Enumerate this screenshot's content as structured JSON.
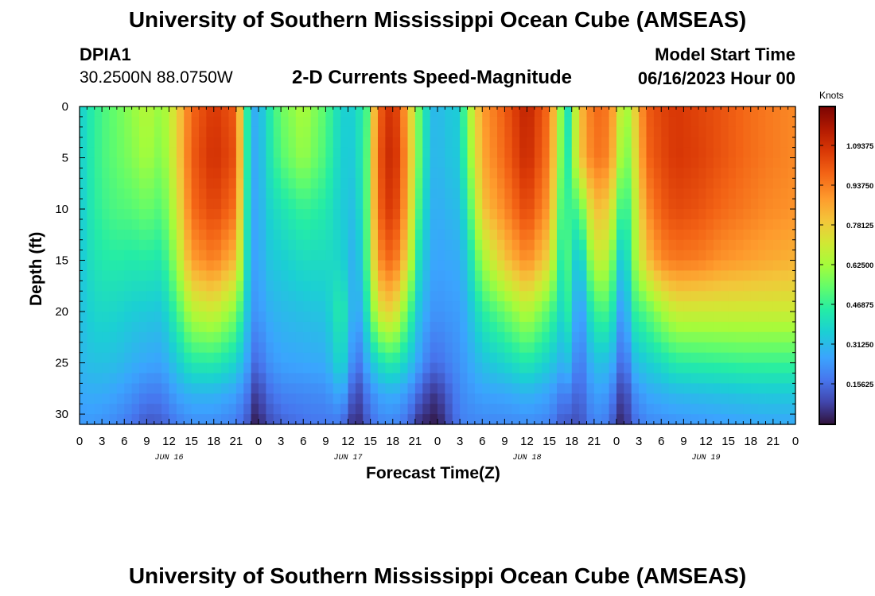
{
  "header": {
    "title": "University of Southern Mississippi Ocean Cube (AMSEAS)",
    "station_id": "DPIA1",
    "station_coords": "30.2500N  88.0750W",
    "plot_title": "2-D Currents Speed-Magnitude",
    "model_start_label": "Model Start Time",
    "model_start_value": "06/16/2023 Hour 00"
  },
  "footer": {
    "title": "University of Southern Mississippi Ocean Cube (AMSEAS)"
  },
  "chart_data": {
    "type": "heatmap",
    "title": "2-D Currents Speed-Magnitude",
    "xlabel": "Forecast Time(Z)",
    "ylabel": "Depth (ft)",
    "x_range_hours": [
      0,
      96
    ],
    "ylim": [
      0,
      31
    ],
    "x_tick_labels": [
      "0",
      "3",
      "6",
      "9",
      "12",
      "15",
      "18",
      "21",
      "0",
      "3",
      "6",
      "9",
      "12",
      "15",
      "18",
      "21",
      "0",
      "3",
      "6",
      "9",
      "12",
      "15",
      "18",
      "21",
      "0",
      "3",
      "6",
      "9",
      "12",
      "15",
      "18",
      "21",
      "0"
    ],
    "y_ticks": [
      0,
      5,
      10,
      15,
      20,
      25,
      30
    ],
    "date_labels": [
      {
        "label": "JUN 16",
        "hour": 12
      },
      {
        "label": "JUN 17",
        "hour": 36
      },
      {
        "label": "JUN 18",
        "hour": 60
      },
      {
        "label": "JUN 19",
        "hour": 84
      }
    ],
    "colorbar": {
      "unit": "Knots",
      "min": 0.0,
      "max": 1.25,
      "labels": [
        "1.09375",
        "0.93750",
        "0.78125",
        "0.62500",
        "0.46875",
        "0.31250",
        "0.15625"
      ]
    },
    "columns": [
      {
        "hour": 0,
        "v": [
          0.35,
          0.35,
          0.34,
          0.33,
          0.32,
          0.3,
          0.27,
          0.24
        ]
      },
      {
        "hour": 1,
        "v": [
          0.42,
          0.42,
          0.41,
          0.39,
          0.36,
          0.32,
          0.28,
          0.24
        ]
      },
      {
        "hour": 2,
        "v": [
          0.46,
          0.46,
          0.45,
          0.42,
          0.38,
          0.33,
          0.28,
          0.24
        ]
      },
      {
        "hour": 3,
        "v": [
          0.5,
          0.5,
          0.48,
          0.44,
          0.39,
          0.33,
          0.28,
          0.23
        ]
      },
      {
        "hour": 5,
        "v": [
          0.55,
          0.54,
          0.51,
          0.45,
          0.38,
          0.32,
          0.26,
          0.21
        ]
      },
      {
        "hour": 7,
        "v": [
          0.6,
          0.58,
          0.52,
          0.44,
          0.36,
          0.29,
          0.23,
          0.17
        ]
      },
      {
        "hour": 9,
        "v": [
          0.66,
          0.63,
          0.55,
          0.45,
          0.35,
          0.27,
          0.19,
          0.12
        ]
      },
      {
        "hour": 11,
        "v": [
          0.6,
          0.57,
          0.51,
          0.43,
          0.34,
          0.26,
          0.19,
          0.13
        ]
      },
      {
        "hour": 13,
        "v": [
          0.76,
          0.75,
          0.7,
          0.62,
          0.48,
          0.35,
          0.26,
          0.19
        ]
      },
      {
        "hour": 15,
        "v": [
          0.98,
          1.0,
          0.97,
          0.88,
          0.66,
          0.44,
          0.3,
          0.22
        ]
      },
      {
        "hour": 18,
        "v": [
          1.08,
          1.1,
          1.05,
          0.94,
          0.7,
          0.45,
          0.3,
          0.22
        ]
      },
      {
        "hour": 21,
        "v": [
          1.0,
          1.02,
          0.96,
          0.82,
          0.58,
          0.38,
          0.26,
          0.19
        ]
      },
      {
        "hour": 22.5,
        "v": [
          0.45,
          0.45,
          0.43,
          0.4,
          0.34,
          0.26,
          0.18,
          0.12
        ]
      },
      {
        "hour": 23,
        "v": [
          0.3,
          0.29,
          0.28,
          0.27,
          0.24,
          0.17,
          0.09,
          0.03
        ]
      },
      {
        "hour": 24,
        "v": [
          0.28,
          0.27,
          0.26,
          0.25,
          0.23,
          0.15,
          0.07,
          0.02
        ]
      },
      {
        "hour": 25,
        "v": [
          0.4,
          0.39,
          0.36,
          0.33,
          0.28,
          0.22,
          0.15,
          0.09
        ]
      },
      {
        "hour": 27,
        "v": [
          0.55,
          0.52,
          0.42,
          0.36,
          0.31,
          0.26,
          0.2,
          0.14
        ]
      },
      {
        "hour": 30,
        "v": [
          0.64,
          0.61,
          0.48,
          0.4,
          0.33,
          0.27,
          0.21,
          0.17
        ]
      },
      {
        "hour": 33,
        "v": [
          0.52,
          0.5,
          0.44,
          0.4,
          0.34,
          0.28,
          0.22,
          0.18
        ]
      },
      {
        "hour": 35,
        "v": [
          0.38,
          0.37,
          0.36,
          0.38,
          0.46,
          0.4,
          0.28,
          0.18
        ]
      },
      {
        "hour": 36,
        "v": [
          0.36,
          0.35,
          0.34,
          0.34,
          0.38,
          0.32,
          0.22,
          0.1
        ]
      },
      {
        "hour": 37,
        "v": [
          0.38,
          0.36,
          0.32,
          0.26,
          0.22,
          0.14,
          0.06,
          0.02
        ]
      },
      {
        "hour": 38.5,
        "v": [
          0.5,
          0.52,
          0.52,
          0.5,
          0.42,
          0.28,
          0.18,
          0.12
        ]
      },
      {
        "hour": 40,
        "v": [
          0.98,
          1.0,
          0.98,
          0.9,
          0.72,
          0.4,
          0.26,
          0.2
        ]
      },
      {
        "hour": 42,
        "v": [
          1.12,
          1.14,
          1.1,
          1.0,
          0.78,
          0.46,
          0.29,
          0.21
        ]
      },
      {
        "hour": 44,
        "v": [
          0.85,
          0.88,
          0.85,
          0.75,
          0.54,
          0.36,
          0.24,
          0.16
        ]
      },
      {
        "hour": 45.5,
        "v": [
          0.55,
          0.55,
          0.5,
          0.42,
          0.34,
          0.26,
          0.15,
          0.05
        ]
      },
      {
        "hour": 47,
        "v": [
          0.33,
          0.32,
          0.3,
          0.28,
          0.24,
          0.17,
          0.07,
          0.02
        ]
      },
      {
        "hour": 48,
        "v": [
          0.3,
          0.3,
          0.28,
          0.26,
          0.23,
          0.16,
          0.06,
          0.01
        ]
      },
      {
        "hour": 49,
        "v": [
          0.34,
          0.33,
          0.3,
          0.27,
          0.24,
          0.19,
          0.12,
          0.07
        ]
      },
      {
        "hour": 51,
        "v": [
          0.36,
          0.35,
          0.32,
          0.28,
          0.25,
          0.23,
          0.21,
          0.19
        ]
      },
      {
        "hour": 52,
        "v": [
          0.6,
          0.55,
          0.45,
          0.36,
          0.3,
          0.26,
          0.23,
          0.2
        ]
      },
      {
        "hour": 54,
        "v": [
          0.88,
          0.86,
          0.8,
          0.62,
          0.45,
          0.33,
          0.26,
          0.21
        ]
      },
      {
        "hour": 57,
        "v": [
          1.0,
          0.98,
          0.92,
          0.8,
          0.55,
          0.38,
          0.27,
          0.21
        ]
      },
      {
        "hour": 60,
        "v": [
          1.14,
          1.12,
          1.05,
          0.92,
          0.66,
          0.44,
          0.3,
          0.22
        ]
      },
      {
        "hour": 63,
        "v": [
          0.96,
          0.94,
          0.88,
          0.76,
          0.52,
          0.36,
          0.26,
          0.2
        ]
      },
      {
        "hour": 64.5,
        "v": [
          0.6,
          0.58,
          0.52,
          0.46,
          0.4,
          0.3,
          0.2,
          0.13
        ]
      },
      {
        "hour": 65.5,
        "v": [
          0.42,
          0.45,
          0.48,
          0.5,
          0.45,
          0.32,
          0.2,
          0.12
        ]
      },
      {
        "hour": 67,
        "v": [
          0.8,
          0.78,
          0.5,
          0.3,
          0.2,
          0.16,
          0.13,
          0.1
        ]
      },
      {
        "hour": 69,
        "v": [
          0.98,
          0.96,
          0.82,
          0.68,
          0.48,
          0.33,
          0.26,
          0.21
        ]
      },
      {
        "hour": 71,
        "v": [
          0.95,
          0.93,
          0.78,
          0.66,
          0.5,
          0.32,
          0.24,
          0.18
        ]
      },
      {
        "hour": 72,
        "v": [
          0.8,
          0.75,
          0.6,
          0.45,
          0.34,
          0.24,
          0.14,
          0.07
        ]
      },
      {
        "hour": 73,
        "v": [
          0.58,
          0.52,
          0.4,
          0.28,
          0.18,
          0.1,
          0.04,
          0.01
        ]
      },
      {
        "hour": 74,
        "v": [
          0.7,
          0.65,
          0.58,
          0.55,
          0.45,
          0.3,
          0.2,
          0.14
        ]
      },
      {
        "hour": 76,
        "v": [
          1.0,
          0.98,
          0.9,
          0.8,
          0.52,
          0.36,
          0.27,
          0.21
        ]
      },
      {
        "hour": 78,
        "v": [
          1.05,
          1.04,
          1.0,
          0.92,
          0.62,
          0.4,
          0.29,
          0.22
        ]
      },
      {
        "hour": 80,
        "v": [
          1.08,
          1.08,
          1.04,
          0.95,
          0.7,
          0.45,
          0.31,
          0.23
        ]
      },
      {
        "hour": 83,
        "v": [
          1.05,
          1.06,
          1.02,
          0.94,
          0.7,
          0.46,
          0.32,
          0.24
        ]
      },
      {
        "hour": 86,
        "v": [
          1.02,
          1.02,
          0.98,
          0.9,
          0.7,
          0.47,
          0.33,
          0.25
        ]
      },
      {
        "hour": 89,
        "v": [
          0.98,
          0.98,
          0.95,
          0.88,
          0.7,
          0.48,
          0.34,
          0.26
        ]
      },
      {
        "hour": 92,
        "v": [
          0.95,
          0.95,
          0.92,
          0.86,
          0.7,
          0.48,
          0.35,
          0.27
        ]
      },
      {
        "hour": 96,
        "v": [
          0.92,
          0.92,
          0.9,
          0.84,
          0.7,
          0.48,
          0.35,
          0.27
        ]
      }
    ],
    "depth_nodes_ft": [
      0,
      5,
      10,
      15,
      20,
      25,
      28,
      31
    ]
  }
}
